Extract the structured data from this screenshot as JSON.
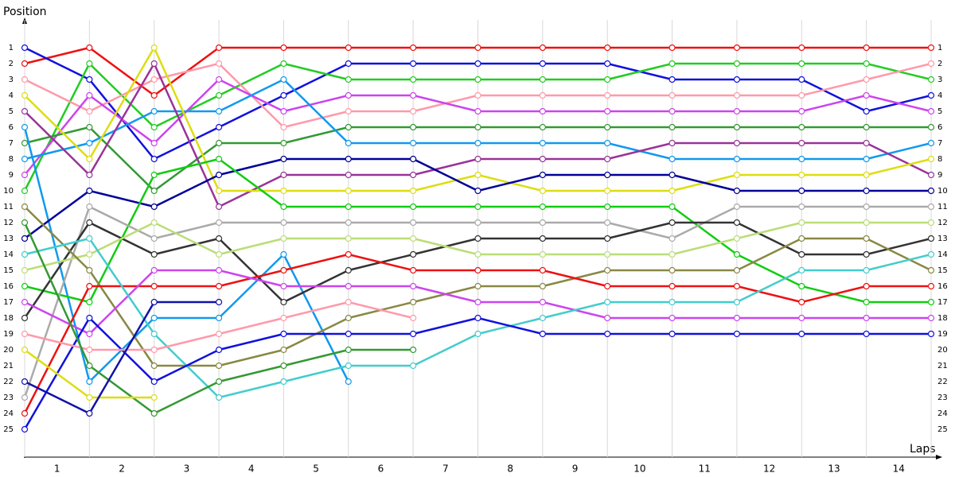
{
  "chart_data": {
    "type": "line",
    "y_label": "Position",
    "x_label": "Laps",
    "x": [
      0,
      1,
      2,
      3,
      4,
      5,
      6,
      7,
      8,
      9,
      10,
      11,
      12,
      13,
      14
    ],
    "xlim": [
      0,
      14
    ],
    "xticks": [
      {
        "value": 0.5,
        "label": "1"
      },
      {
        "value": 1.5,
        "label": "2"
      },
      {
        "value": 2.5,
        "label": "3"
      },
      {
        "value": 3.5,
        "label": "4"
      },
      {
        "value": 4.5,
        "label": "5"
      },
      {
        "value": 5.5,
        "label": "6"
      },
      {
        "value": 6.5,
        "label": "7"
      },
      {
        "value": 7.5,
        "label": "8"
      },
      {
        "value": 8.5,
        "label": "9"
      },
      {
        "value": 9.5,
        "label": "10"
      },
      {
        "value": 10.5,
        "label": "11"
      },
      {
        "value": 11.5,
        "label": "12"
      },
      {
        "value": 12.5,
        "label": "13"
      },
      {
        "value": 13.5,
        "label": "14"
      }
    ],
    "ylim": [
      26.75,
      -0.75
    ],
    "yticks": [
      1,
      2,
      3,
      4,
      5,
      6,
      7,
      8,
      9,
      10,
      11,
      12,
      13,
      14,
      15,
      16,
      17,
      18,
      19,
      20,
      21,
      22,
      23,
      24,
      25
    ],
    "grid": true,
    "series": [
      {
        "color": "#ee1111",
        "values": [
          2,
          1,
          4,
          1,
          1,
          1,
          1,
          1,
          1,
          1,
          1,
          1,
          1,
          1,
          1
        ]
      },
      {
        "color": "#1111dd",
        "values": [
          1,
          3,
          8,
          6,
          4,
          2,
          2,
          2,
          2,
          2,
          3,
          3,
          3,
          5,
          4
        ]
      },
      {
        "color": "#22cc22",
        "values": [
          10,
          2,
          6,
          4,
          2,
          3,
          3,
          3,
          3,
          3,
          2,
          2,
          2,
          2,
          3
        ]
      },
      {
        "color": "#ff99aa",
        "values": [
          3,
          5,
          3,
          2,
          6,
          5,
          5,
          4,
          4,
          4,
          4,
          4,
          4,
          3,
          2
        ]
      },
      {
        "color": "#cc44ee",
        "values": [
          9,
          4,
          7,
          3,
          5,
          4,
          4,
          5,
          5,
          5,
          5,
          5,
          5,
          4,
          5
        ]
      },
      {
        "color": "#339933",
        "values": [
          7,
          6,
          10,
          7,
          7,
          6,
          6,
          6,
          6,
          6,
          6,
          6,
          6,
          6,
          6
        ]
      },
      {
        "color": "#1199ee",
        "values": [
          8,
          7,
          5,
          5,
          3,
          7,
          7,
          7,
          7,
          7,
          8,
          8,
          8,
          8,
          7
        ]
      },
      {
        "color": "#1199ee",
        "values": [
          6,
          22,
          18,
          18,
          14,
          22,
          null,
          null,
          null,
          null,
          null,
          null,
          null,
          null,
          null
        ]
      },
      {
        "color": "#993399",
        "values": [
          5,
          9,
          2,
          11,
          9,
          9,
          9,
          8,
          8,
          8,
          7,
          7,
          7,
          7,
          9
        ]
      },
      {
        "color": "#dddd11",
        "values": [
          4,
          8,
          1,
          10,
          10,
          10,
          10,
          9,
          10,
          10,
          10,
          9,
          9,
          9,
          8
        ]
      },
      {
        "color": "#000099",
        "values": [
          13,
          10,
          11,
          9,
          8,
          8,
          8,
          10,
          9,
          9,
          9,
          10,
          10,
          10,
          10
        ]
      },
      {
        "color": "#11cc11",
        "values": [
          16,
          17,
          9,
          8,
          11,
          11,
          11,
          11,
          11,
          11,
          11,
          14,
          16,
          17,
          17
        ]
      },
      {
        "color": "#aaaaaa",
        "values": [
          23,
          11,
          13,
          12,
          12,
          12,
          12,
          12,
          12,
          12,
          13,
          11,
          11,
          11,
          11
        ]
      },
      {
        "color": "#333333",
        "values": [
          18,
          12,
          14,
          13,
          17,
          15,
          14,
          13,
          13,
          13,
          12,
          12,
          14,
          14,
          13
        ]
      },
      {
        "color": "#bbdd77",
        "values": [
          15,
          14,
          12,
          14,
          13,
          13,
          13,
          14,
          14,
          14,
          14,
          13,
          12,
          12,
          12
        ]
      },
      {
        "color": "#888844",
        "values": [
          11,
          15,
          21,
          21,
          20,
          18,
          17,
          16,
          16,
          15,
          15,
          15,
          13,
          13,
          15
        ]
      },
      {
        "color": "#ee1111",
        "values": [
          24,
          16,
          16,
          16,
          15,
          14,
          15,
          15,
          15,
          16,
          16,
          16,
          17,
          16,
          16
        ]
      },
      {
        "color": "#cc44ee",
        "values": [
          17,
          19,
          15,
          15,
          16,
          16,
          16,
          17,
          17,
          18,
          18,
          18,
          18,
          18,
          18
        ]
      },
      {
        "color": "#44cccc",
        "values": [
          14,
          13,
          19,
          23,
          22,
          21,
          21,
          19,
          18,
          17,
          17,
          17,
          15,
          15,
          14
        ]
      },
      {
        "color": "#1111dd",
        "values": [
          25,
          18,
          22,
          20,
          19,
          19,
          19,
          18,
          19,
          19,
          19,
          19,
          19,
          19,
          19
        ]
      },
      {
        "color": "#ff99aa",
        "values": [
          19,
          20,
          20,
          19,
          18,
          17,
          18,
          null,
          null,
          null,
          null,
          null,
          null,
          null,
          null
        ]
      },
      {
        "color": "#339933",
        "values": [
          12,
          21,
          24,
          22,
          21,
          20,
          20,
          null,
          null,
          null,
          null,
          null,
          null,
          null,
          null
        ]
      },
      {
        "color": "#dddd11",
        "values": [
          20,
          23,
          23,
          null,
          null,
          null,
          null,
          null,
          null,
          null,
          null,
          null,
          null,
          null,
          null
        ]
      },
      {
        "color": "#1111aa",
        "values": [
          22,
          24,
          17,
          17,
          null,
          null,
          null,
          null,
          null,
          null,
          null,
          null,
          null,
          null,
          null
        ]
      }
    ]
  }
}
